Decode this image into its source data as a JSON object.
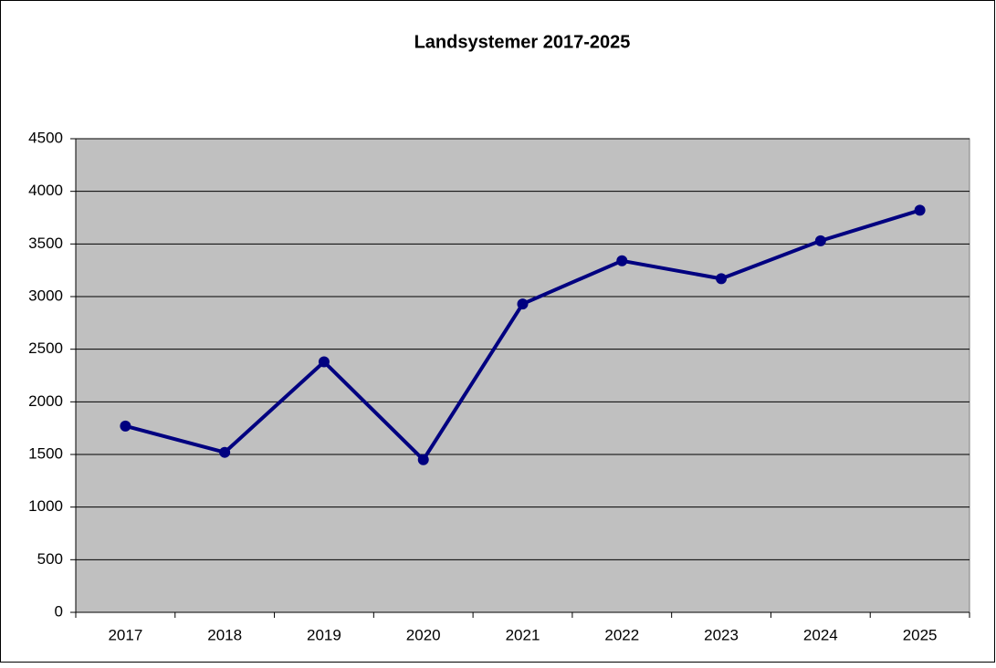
{
  "chart_data": {
    "type": "line",
    "title": "Landsystemer 2017-2025",
    "categories": [
      "2017",
      "2018",
      "2019",
      "2020",
      "2021",
      "2022",
      "2023",
      "2024",
      "2025"
    ],
    "series": [
      {
        "name": "Landsystemer",
        "color": "#000080",
        "values": [
          1770,
          1520,
          2380,
          1450,
          2930,
          3340,
          3170,
          3530,
          3820
        ]
      }
    ],
    "ylim": [
      0,
      4500
    ],
    "yticks": [
      0,
      500,
      1000,
      1500,
      2000,
      2500,
      3000,
      3500,
      4000,
      4500
    ],
    "grid": true,
    "plot_background": "#c0c0c0"
  }
}
